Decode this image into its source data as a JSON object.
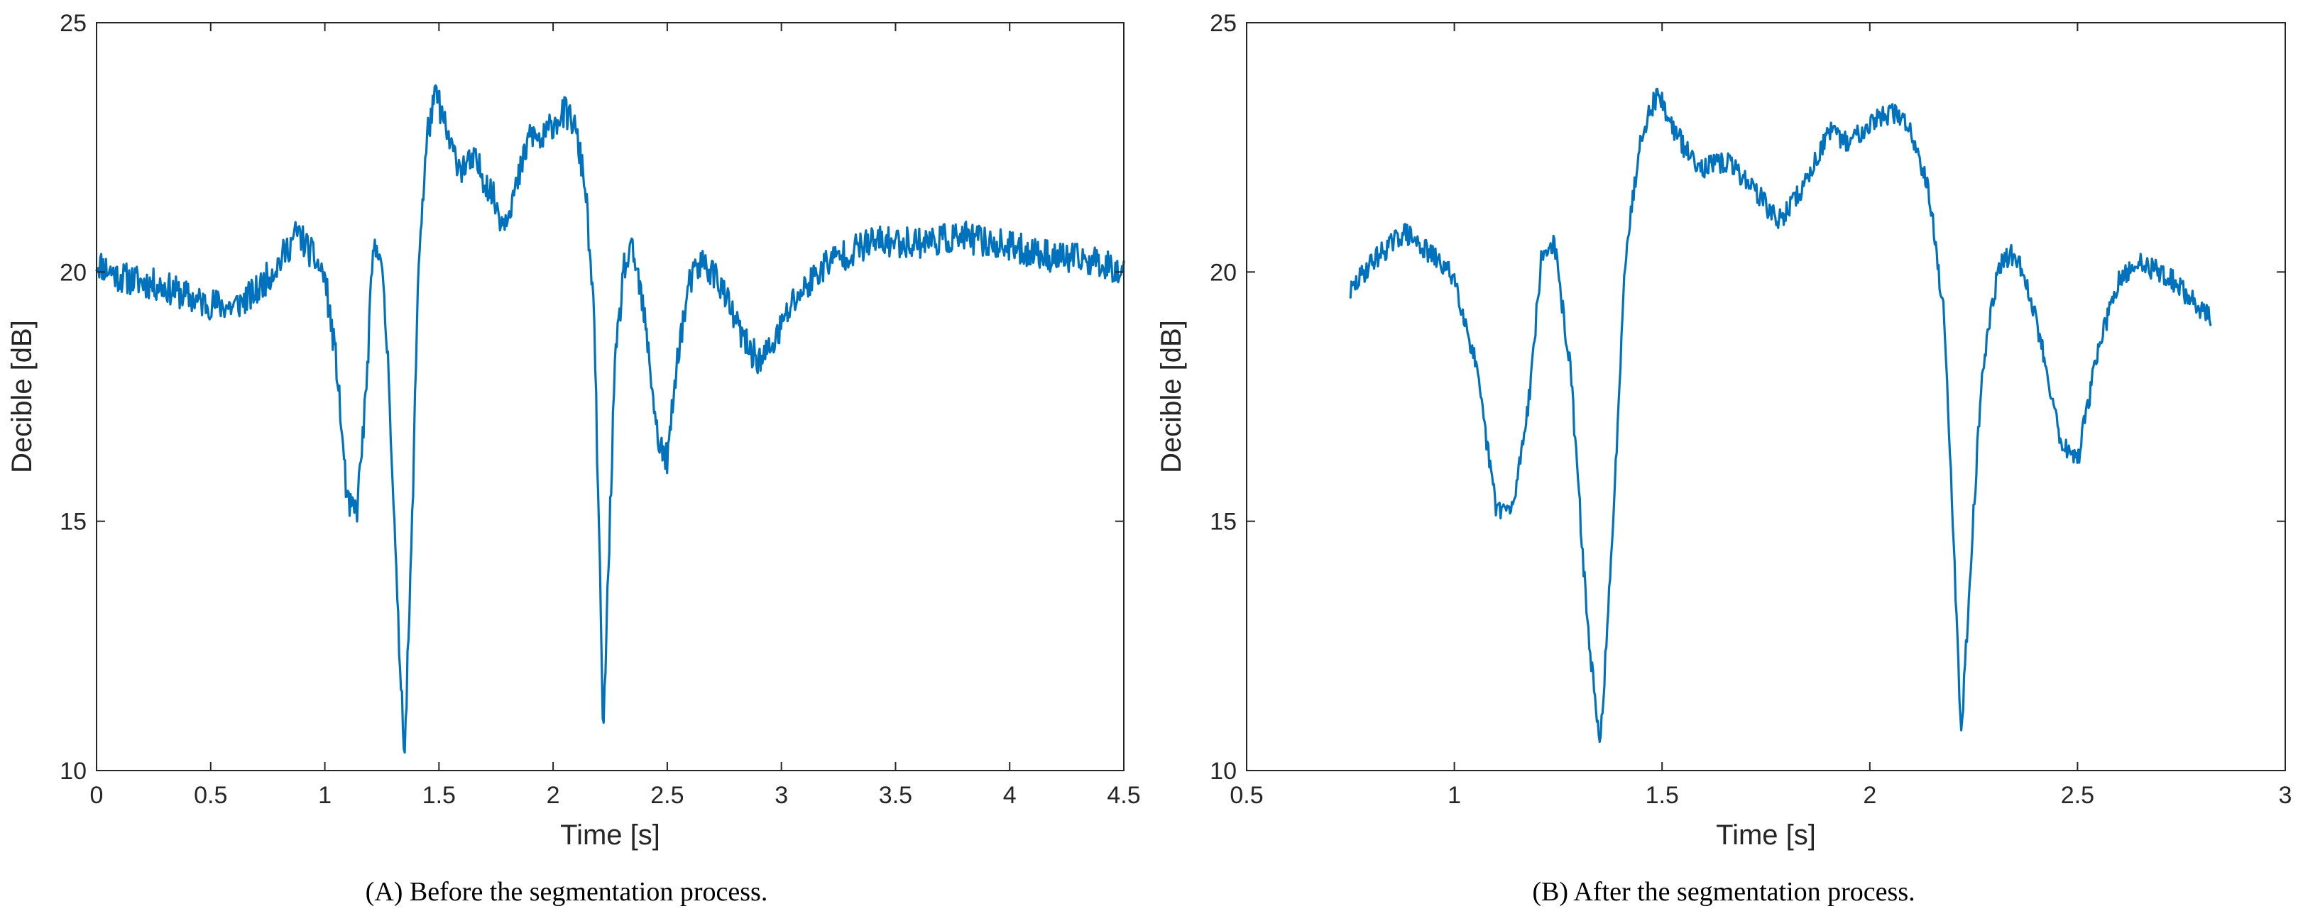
{
  "colors": {
    "series": "#0072BD",
    "axis": "#262626",
    "background": "#ffffff"
  },
  "chart_data": [
    {
      "type": "line",
      "title": "",
      "caption": "(A) Before the segmentation process.",
      "xlabel": "Time [s]",
      "ylabel": "Decible [dB]",
      "xlim": [
        0,
        4.5
      ],
      "ylim": [
        10,
        25
      ],
      "xticks": [
        0,
        0.5,
        1,
        1.5,
        2,
        2.5,
        3,
        3.5,
        4,
        4.5
      ],
      "xtick_labels": [
        "0",
        "0.5",
        "1",
        "1.5",
        "2",
        "2.5",
        "3",
        "3.5",
        "4",
        "4.5"
      ],
      "yticks": [
        10,
        15,
        20,
        25
      ],
      "ytick_labels": [
        "10",
        "15",
        "20",
        "25"
      ],
      "grid": false,
      "series": [
        {
          "name": "signal",
          "noise": 0.32,
          "seed": 11,
          "anchors": [
            [
              0.0,
              20.2
            ],
            [
              0.1,
              19.9
            ],
            [
              0.3,
              19.7
            ],
            [
              0.45,
              19.4
            ],
            [
              0.6,
              19.3
            ],
            [
              0.7,
              19.6
            ],
            [
              0.8,
              20.2
            ],
            [
              0.88,
              20.8
            ],
            [
              0.95,
              20.3
            ],
            [
              1.0,
              19.9
            ],
            [
              1.05,
              18.2
            ],
            [
              1.1,
              15.3
            ],
            [
              1.14,
              15.2
            ],
            [
              1.18,
              17.5
            ],
            [
              1.21,
              20.3
            ],
            [
              1.24,
              20.6
            ],
            [
              1.28,
              18.0
            ],
            [
              1.32,
              13.0
            ],
            [
              1.35,
              10.4
            ],
            [
              1.38,
              14.5
            ],
            [
              1.41,
              20.2
            ],
            [
              1.45,
              22.8
            ],
            [
              1.49,
              23.6
            ],
            [
              1.52,
              23.0
            ],
            [
              1.56,
              22.4
            ],
            [
              1.6,
              22.1
            ],
            [
              1.66,
              22.2
            ],
            [
              1.72,
              21.7
            ],
            [
              1.78,
              21.0
            ],
            [
              1.84,
              21.7
            ],
            [
              1.9,
              22.8
            ],
            [
              1.95,
              22.6
            ],
            [
              2.0,
              23.0
            ],
            [
              2.05,
              23.2
            ],
            [
              2.09,
              23.0
            ],
            [
              2.14,
              21.8
            ],
            [
              2.18,
              19.0
            ],
            [
              2.2,
              15.0
            ],
            [
              2.22,
              10.6
            ],
            [
              2.24,
              13.8
            ],
            [
              2.27,
              18.0
            ],
            [
              2.31,
              20.1
            ],
            [
              2.35,
              20.4
            ],
            [
              2.39,
              19.4
            ],
            [
              2.42,
              18.3
            ],
            [
              2.46,
              16.6
            ],
            [
              2.5,
              16.2
            ],
            [
              2.55,
              18.5
            ],
            [
              2.6,
              19.8
            ],
            [
              2.65,
              20.2
            ],
            [
              2.72,
              19.9
            ],
            [
              2.78,
              19.2
            ],
            [
              2.85,
              18.5
            ],
            [
              2.91,
              18.2
            ],
            [
              2.97,
              18.6
            ],
            [
              3.05,
              19.4
            ],
            [
              3.2,
              20.2
            ],
            [
              3.4,
              20.6
            ],
            [
              3.6,
              20.6
            ],
            [
              3.8,
              20.7
            ],
            [
              4.0,
              20.5
            ],
            [
              4.2,
              20.3
            ],
            [
              4.4,
              20.2
            ],
            [
              4.5,
              20.0
            ]
          ]
        }
      ]
    },
    {
      "type": "line",
      "title": "",
      "caption": "(B) After the segmentation process.",
      "xlabel": "Time [s]",
      "ylabel": "Decible [dB]",
      "xlim": [
        0.5,
        3
      ],
      "ylim": [
        10,
        25
      ],
      "xticks": [
        0.5,
        1,
        1.5,
        2,
        2.5,
        3
      ],
      "xtick_labels": [
        "0.5",
        "1",
        "1.5",
        "2",
        "2.5",
        "3"
      ],
      "yticks": [
        10,
        15,
        20,
        25
      ],
      "ytick_labels": [
        "10",
        "15",
        "20",
        "25"
      ],
      "grid": false,
      "series": [
        {
          "name": "signal",
          "noise": 0.22,
          "seed": 29,
          "anchors": [
            [
              0.75,
              19.6
            ],
            [
              0.8,
              20.2
            ],
            [
              0.88,
              20.8
            ],
            [
              0.95,
              20.3
            ],
            [
              1.0,
              19.9
            ],
            [
              1.05,
              18.2
            ],
            [
              1.1,
              15.3
            ],
            [
              1.14,
              15.2
            ],
            [
              1.18,
              17.5
            ],
            [
              1.21,
              20.3
            ],
            [
              1.24,
              20.6
            ],
            [
              1.28,
              18.0
            ],
            [
              1.32,
              13.0
            ],
            [
              1.35,
              10.4
            ],
            [
              1.38,
              14.5
            ],
            [
              1.41,
              20.2
            ],
            [
              1.45,
              22.8
            ],
            [
              1.49,
              23.6
            ],
            [
              1.52,
              23.0
            ],
            [
              1.56,
              22.4
            ],
            [
              1.6,
              22.1
            ],
            [
              1.66,
              22.2
            ],
            [
              1.72,
              21.7
            ],
            [
              1.78,
              21.0
            ],
            [
              1.84,
              21.7
            ],
            [
              1.9,
              22.8
            ],
            [
              1.95,
              22.6
            ],
            [
              2.0,
              23.0
            ],
            [
              2.05,
              23.2
            ],
            [
              2.09,
              23.0
            ],
            [
              2.14,
              21.8
            ],
            [
              2.18,
              19.0
            ],
            [
              2.2,
              15.0
            ],
            [
              2.22,
              10.6
            ],
            [
              2.24,
              13.8
            ],
            [
              2.27,
              18.0
            ],
            [
              2.31,
              20.1
            ],
            [
              2.35,
              20.4
            ],
            [
              2.39,
              19.4
            ],
            [
              2.42,
              18.3
            ],
            [
              2.46,
              16.6
            ],
            [
              2.5,
              16.2
            ],
            [
              2.55,
              18.5
            ],
            [
              2.6,
              19.8
            ],
            [
              2.65,
              20.2
            ],
            [
              2.72,
              19.9
            ],
            [
              2.78,
              19.4
            ],
            [
              2.82,
              19.1
            ]
          ]
        }
      ]
    }
  ]
}
